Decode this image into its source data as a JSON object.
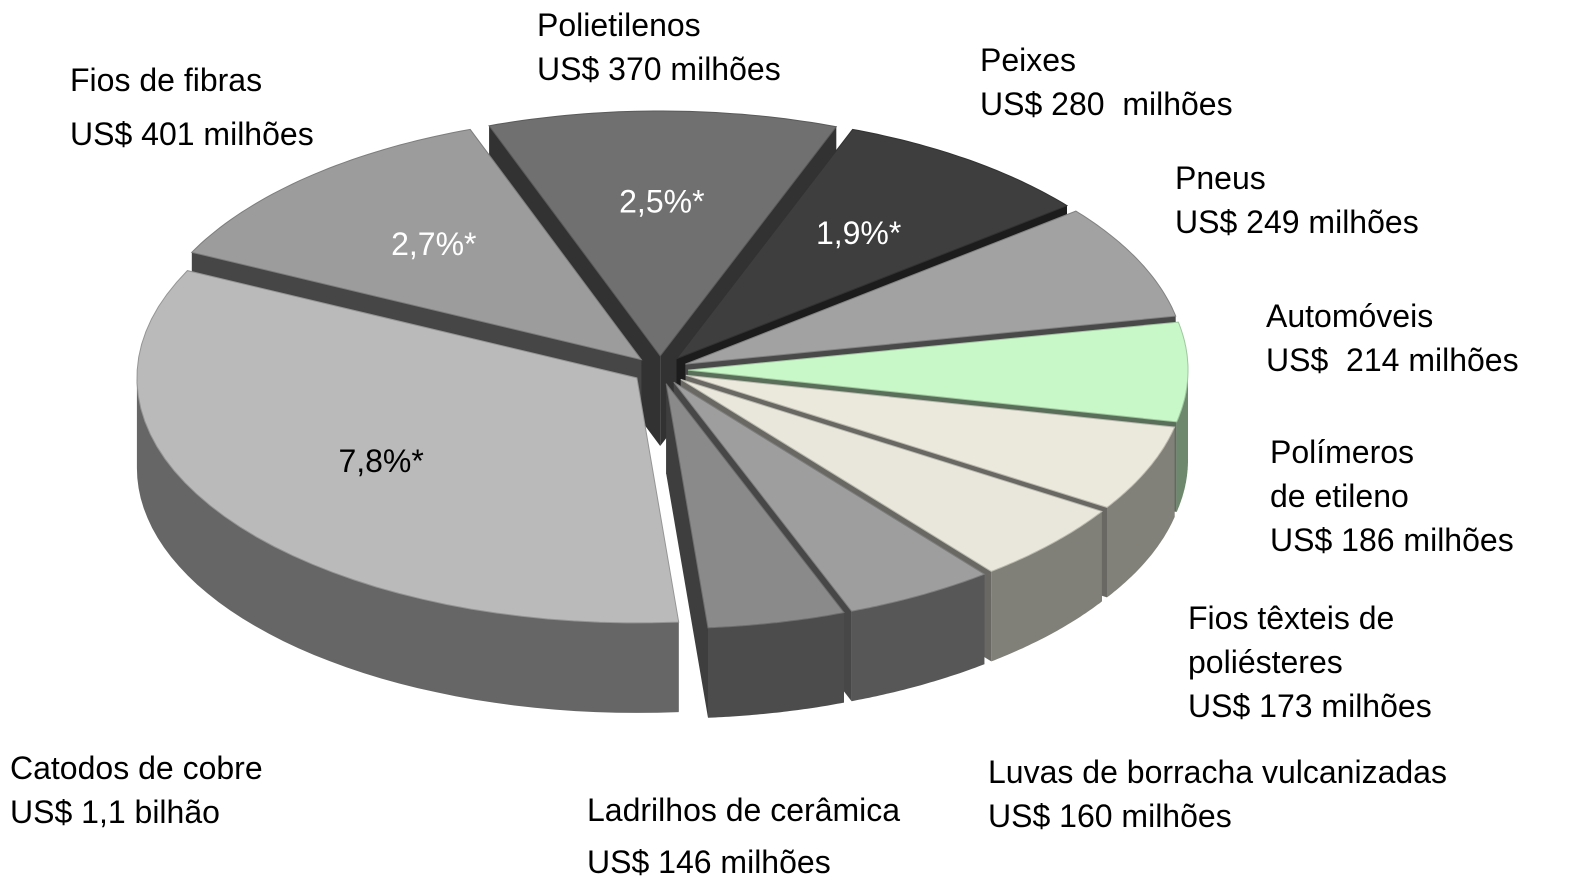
{
  "chart_data": {
    "type": "pie",
    "categories": [
      "Polietilenos",
      "Peixes",
      "Pneus",
      "Automóveis",
      "Polímeros\nde etileno",
      "Fios têxteis de\npoliésteres",
      "Luvas de borracha vulcanizadas",
      "Ladrilhos de cerâmica",
      "Catodos de cobre",
      "Fios de fibras"
    ],
    "values": [
      370,
      280,
      249,
      214,
      186,
      173,
      160,
      146,
      1100,
      401
    ],
    "value_labels": [
      "US$ 370 milhões",
      "US$ 280  milhões",
      "US$ 249 milhões",
      "US$  214 milhões",
      "US$ 186 milhões",
      "US$ 173 milhões",
      "US$ 160 milhões",
      "US$ 146 milhões",
      "US$ 1,1 bilhão",
      "US$ 401 milhões"
    ],
    "percents": [
      2.5,
      1.9,
      null,
      null,
      null,
      null,
      null,
      null,
      7.8,
      2.7
    ],
    "percent_labels": [
      "2,5%*",
      "1,9%*",
      null,
      null,
      null,
      null,
      null,
      null,
      "7,8%*",
      "2,7%*"
    ],
    "colors": [
      "#707070",
      "#3e3e3e",
      "#a2a2a2",
      "#c8f7c8",
      "#ebe8dc",
      "#e9e7db",
      "#9e9e9e",
      "#8a8a8a",
      "#bababa",
      "#9c9c9c"
    ],
    "percent_label_colors": [
      "#ffffff",
      "#ffffff",
      null,
      null,
      null,
      null,
      null,
      null,
      "#000000",
      "#ffffff"
    ]
  }
}
